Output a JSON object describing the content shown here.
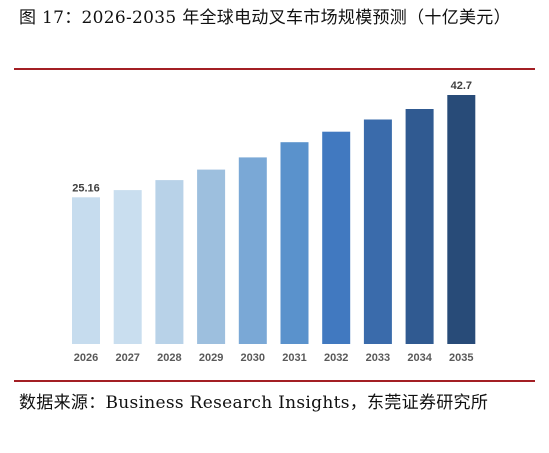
{
  "figure": {
    "title": "图 17：2026-2035 年全球电动叉车市场规模预测（十亿美元）",
    "source": "数据来源：Business Research Insights，东莞证券研究所"
  },
  "chart_data": {
    "type": "bar",
    "title": "",
    "xlabel": "",
    "ylabel": "",
    "categories": [
      "2026",
      "2027",
      "2028",
      "2029",
      "2030",
      "2031",
      "2032",
      "2033",
      "2034",
      "2035"
    ],
    "series": [
      {
        "values": [
          25.16,
          26.4,
          28.1,
          29.9,
          32.0,
          34.6,
          36.4,
          38.5,
          40.3,
          42.7
        ],
        "data_labels": [
          "25.16",
          "",
          "",
          "",
          "",
          "",
          "",
          "",
          "",
          "42.7"
        ]
      }
    ],
    "ylim": [
      0,
      42.7
    ],
    "grid": false,
    "legend": "none",
    "colors": [
      "#c6dcee",
      "#c9deef",
      "#b8d2e8",
      "#9dbfde",
      "#7aa8d6",
      "#5a92cc",
      "#4179c0",
      "#3a6bab",
      "#305a91",
      "#284b78"
    ]
  }
}
